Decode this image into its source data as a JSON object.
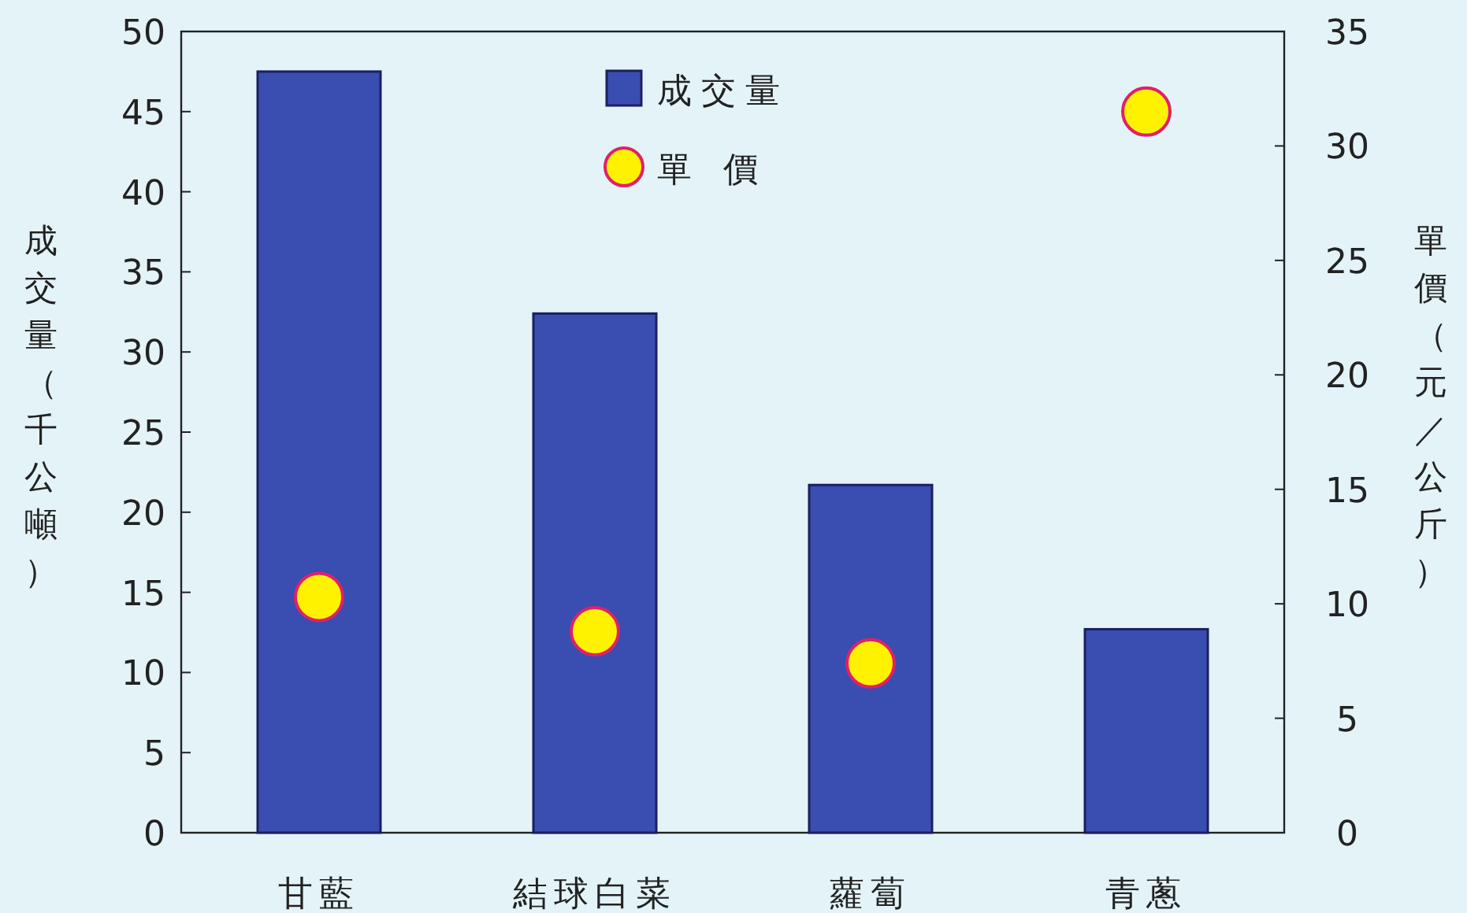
{
  "chart_data": {
    "type": "bar",
    "ylabel": "成交量（千公噸）",
    "y2label": "單價（元／公斤）",
    "categories": [
      "甘藍",
      "結球白菜",
      "蘿蔔",
      "青蔥"
    ],
    "series": [
      {
        "name": "成交量",
        "color": "#3a4db0",
        "values": [
          47.5,
          32.4,
          21.7,
          12.7
        ]
      },
      {
        "name": "單價",
        "type": "scatter",
        "axis": "y2",
        "color": "#fff200",
        "marker": "circle",
        "values": [
          10.3,
          8.8,
          7.4,
          31.5
        ]
      }
    ],
    "ylim": [
      0,
      50
    ],
    "yticks": [
      0,
      5,
      10,
      15,
      20,
      25,
      30,
      35,
      40,
      45,
      50
    ],
    "y2lim": [
      0,
      35
    ],
    "y2ticks": [
      0,
      5,
      10,
      15,
      20,
      25,
      30,
      35
    ],
    "legend": "top",
    "grid": false
  }
}
